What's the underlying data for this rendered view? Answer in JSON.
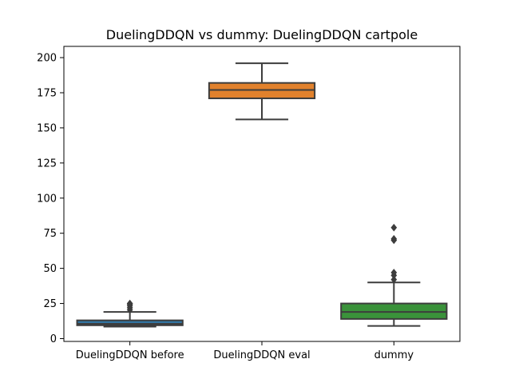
{
  "chart_data": {
    "type": "box",
    "title": "DuelingDDQN vs dummy: DuelingDDQN cartpole",
    "xlabel": "",
    "ylabel": "",
    "ylim": [
      -2,
      208
    ],
    "yticks": [
      0,
      25,
      50,
      75,
      100,
      125,
      150,
      175,
      200
    ],
    "grid": false,
    "boxes": [
      {
        "category": "DuelingDDQN before",
        "color": "#3274a1",
        "whisker_low": 8.5,
        "q1": 9.5,
        "median": 10.5,
        "q3": 13.0,
        "whisker_high": 19.0,
        "outliers": [
          20.5,
          22.0,
          23.5,
          24.5,
          25.0
        ]
      },
      {
        "category": "DuelingDDQN eval",
        "color": "#e1812c",
        "whisker_low": 156,
        "q1": 171,
        "median": 177,
        "q3": 182,
        "whisker_high": 196,
        "outliers": []
      },
      {
        "category": "dummy",
        "color": "#3a923a",
        "whisker_low": 9,
        "q1": 14,
        "median": 19,
        "q3": 25,
        "whisker_high": 40,
        "outliers": [
          42,
          45,
          47,
          70,
          71,
          79
        ]
      }
    ]
  }
}
